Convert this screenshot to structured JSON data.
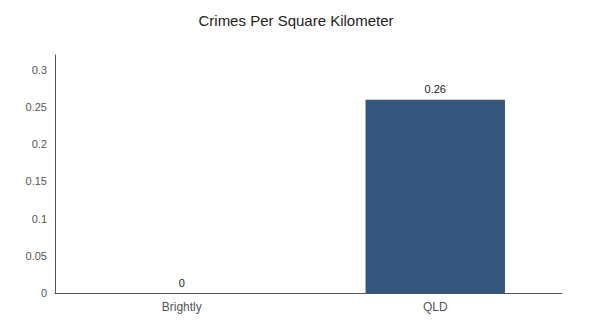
{
  "chart_data": {
    "type": "bar",
    "title": "Crimes Per Square Kilometer",
    "categories": [
      "Brightly",
      "QLD"
    ],
    "values": [
      0,
      0.26
    ],
    "color": "#35567d",
    "ylim": [
      0,
      0.32
    ],
    "yticks": [
      0,
      0.05,
      0.1,
      0.15,
      0.2,
      0.25,
      0.3
    ],
    "grid": false,
    "data_labels": true
  }
}
